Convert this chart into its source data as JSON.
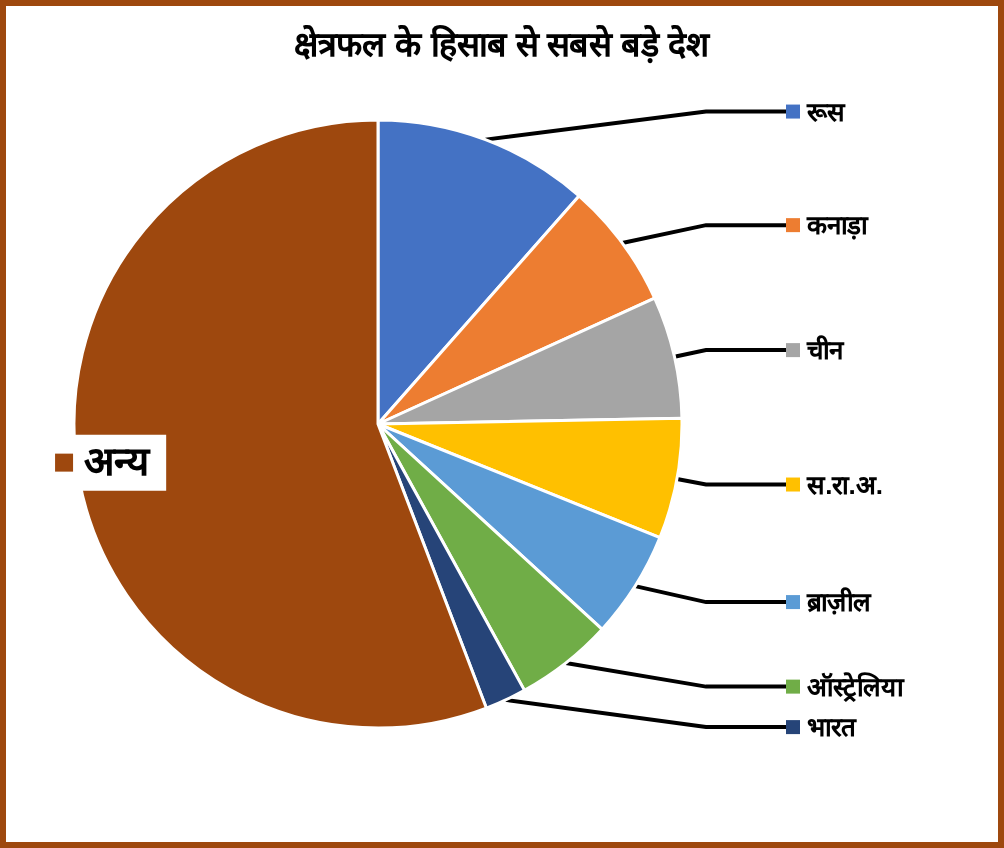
{
  "chart_data": {
    "type": "pie",
    "title": "क्षेत्रफल के हिसाब से सबसे बड़े देश",
    "categories": [
      "रूस",
      "कनाड़ा",
      "चीन",
      "स.रा.अ.",
      "ब्राज़ील",
      "ऑस्ट्रेलिया",
      "भारत",
      "अन्य"
    ],
    "values": [
      11.5,
      6.7,
      6.5,
      6.4,
      5.7,
      5.2,
      2.2,
      55.8
    ],
    "legend": "right",
    "colors": [
      "#4472c4",
      "#ed7d31",
      "#a5a5a5",
      "#ffc000",
      "#5b9bd5",
      "#70ad47",
      "#264478",
      "#9e480e"
    ]
  }
}
